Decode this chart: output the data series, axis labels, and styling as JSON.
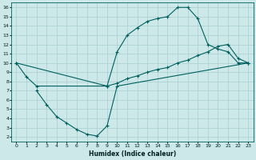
{
  "xlabel": "Humidex (Indice chaleur)",
  "bg_color": "#cce8e8",
  "line_color": "#006060",
  "grid_color": "#aacece",
  "xlim": [
    -0.5,
    23.5
  ],
  "ylim": [
    1.5,
    16.5
  ],
  "xticks": [
    0,
    1,
    2,
    3,
    4,
    5,
    6,
    7,
    8,
    9,
    10,
    11,
    12,
    13,
    14,
    15,
    16,
    17,
    18,
    19,
    20,
    21,
    22,
    23
  ],
  "yticks": [
    2,
    3,
    4,
    5,
    6,
    7,
    8,
    9,
    10,
    11,
    12,
    13,
    14,
    15,
    16
  ],
  "line1_x": [
    0,
    1,
    2,
    9,
    10,
    11,
    12,
    13,
    14,
    15,
    16,
    17,
    18,
    19,
    20,
    21,
    22,
    23
  ],
  "line1_y": [
    10,
    8.5,
    7.5,
    7.5,
    11.2,
    13.0,
    13.8,
    14.5,
    14.8,
    15.0,
    16.0,
    16.0,
    14.8,
    12.0,
    11.5,
    11.2,
    10.0,
    10.0
  ],
  "line2_x": [
    2,
    3,
    4,
    5,
    6,
    7,
    8,
    9,
    10,
    23
  ],
  "line2_y": [
    7.0,
    5.5,
    4.2,
    3.5,
    2.8,
    2.3,
    2.1,
    3.2,
    7.5,
    10.0
  ],
  "line3_x": [
    0,
    9,
    10,
    11,
    12,
    13,
    14,
    15,
    16,
    17,
    18,
    19,
    20,
    21,
    22,
    23
  ],
  "line3_y": [
    10.0,
    7.5,
    7.8,
    8.3,
    8.6,
    9.0,
    9.3,
    9.5,
    10.0,
    10.3,
    10.8,
    11.2,
    11.8,
    12.0,
    10.5,
    10.0
  ]
}
